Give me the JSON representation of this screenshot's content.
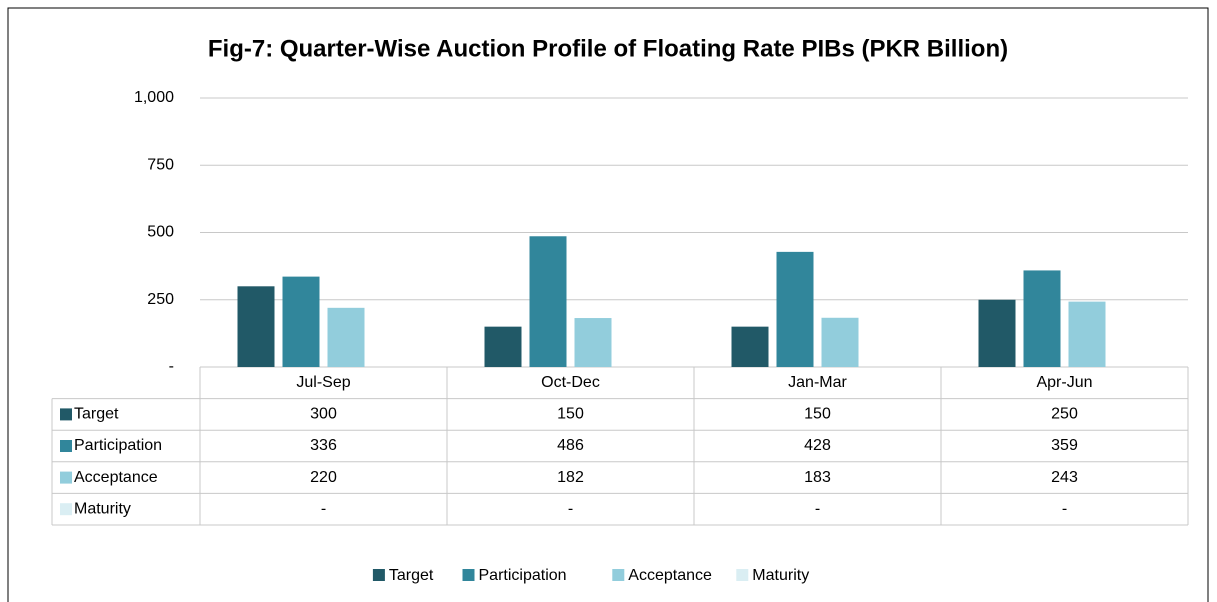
{
  "chart_data": {
    "type": "bar",
    "title": "Fig-7: Quarter-Wise Auction Profile of Floating Rate PIBs (PKR Billion)",
    "categories": [
      "Jul-Sep",
      "Oct-Dec",
      "Jan-Mar",
      "Apr-Jun"
    ],
    "series": [
      {
        "name": "Target",
        "color": "#215967",
        "values": [
          300,
          150,
          150,
          250
        ]
      },
      {
        "name": "Participation",
        "color": "#31869b",
        "values": [
          336,
          486,
          428,
          359
        ]
      },
      {
        "name": "Acceptance",
        "color": "#92cddc",
        "values": [
          220,
          182,
          183,
          243
        ]
      },
      {
        "name": "Maturity",
        "color": "#daeef3",
        "values": [
          0,
          0,
          0,
          0
        ],
        "value_labels": [
          "-",
          "-",
          "-",
          "-"
        ]
      }
    ],
    "ylim": [
      0,
      1000
    ],
    "yticks": [
      {
        "value": 0,
        "label": "-"
      },
      250,
      500,
      750,
      {
        "value": 1000,
        "label": "1,000"
      }
    ],
    "grid": true,
    "legend": "bottom",
    "data_table": true
  }
}
